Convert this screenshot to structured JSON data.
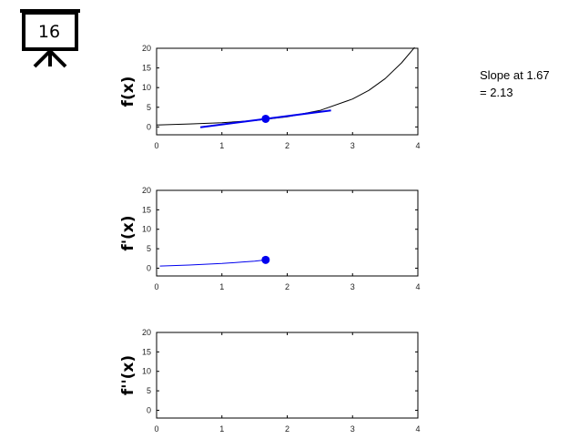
{
  "badge": {
    "number": "16",
    "icon": "presentation-board-icon"
  },
  "readout": {
    "line1": "Slope at 1.67",
    "line2": "= 2.13"
  },
  "colors": {
    "highlight": "#0000ee",
    "curve": "#000000",
    "axis": "#000000"
  },
  "chart_data": [
    {
      "type": "line",
      "ylabel": "f(x)",
      "xlim": [
        0,
        4
      ],
      "ylim": [
        -2,
        20
      ],
      "xticks": [
        0,
        1,
        2,
        3,
        4
      ],
      "yticks": [
        0,
        5,
        10,
        15,
        20
      ],
      "series": [
        {
          "kind": "curve",
          "x": [
            0,
            0.5,
            1,
            1.5,
            2,
            2.5,
            3,
            3.25,
            3.5,
            3.75,
            3.95
          ],
          "y": [
            0.5,
            0.75,
            1.09,
            1.62,
            2.57,
            4.19,
            7.11,
            9.3,
            12.3,
            16.3,
            20.2
          ]
        },
        {
          "kind": "tangent",
          "x": [
            0.67,
            2.67
          ],
          "y": [
            -0.07,
            4.19
          ]
        },
        {
          "kind": "point",
          "x": [
            1.67
          ],
          "y": [
            2.06
          ]
        }
      ]
    },
    {
      "type": "line",
      "ylabel": "f'(x)",
      "xlim": [
        0,
        4
      ],
      "ylim": [
        -2,
        20
      ],
      "xticks": [
        0,
        1,
        2,
        3,
        4
      ],
      "yticks": [
        0,
        5,
        10,
        15,
        20
      ],
      "series": [
        {
          "kind": "curve",
          "x": [
            0.05,
            0.5,
            1,
            1.3,
            1.5,
            1.67
          ],
          "y": [
            0.55,
            0.8,
            1.2,
            1.55,
            1.8,
            2.13
          ]
        },
        {
          "kind": "point",
          "x": [
            1.67
          ],
          "y": [
            2.13
          ]
        }
      ]
    },
    {
      "type": "line",
      "ylabel": "f''(x)",
      "xlim": [
        0,
        4
      ],
      "ylim": [
        -2,
        20
      ],
      "xticks": [
        0,
        1,
        2,
        3,
        4
      ],
      "yticks": [
        0,
        5,
        10,
        15,
        20
      ],
      "series": []
    }
  ]
}
